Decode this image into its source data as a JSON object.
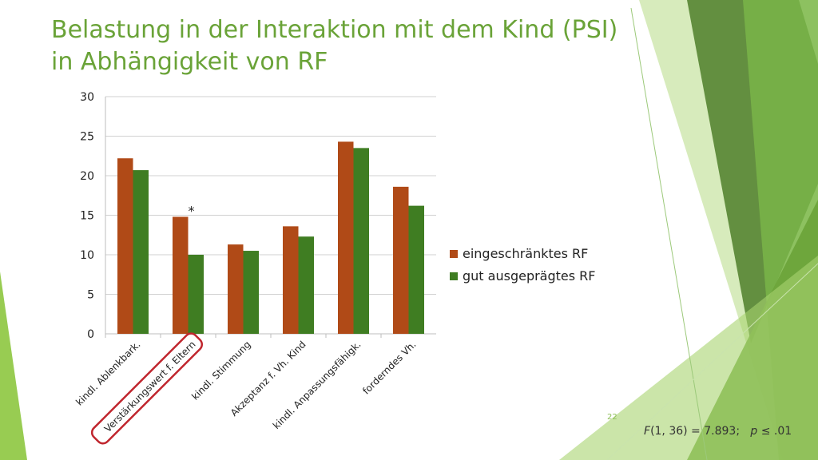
{
  "slide": {
    "title_line1": "Belastung in der Interaktion mit dem Kind (PSI)",
    "title_line2": "in Abhängigkeit von RF",
    "page_number": "22",
    "stat": {
      "f_symbol": "F",
      "f_text": "(1, 36) = 7.893;",
      "p_symbol": "p",
      "p_text": " ≤ .01"
    },
    "colors": {
      "title": "#6aa338",
      "accent_green": "#8dc63f",
      "dark_green": "#4f7f2a",
      "highlight_box": "#c0262e"
    }
  },
  "chart_data": {
    "type": "bar",
    "categories": [
      "kindl. Ablenkbark.",
      "Verstärkungswert f. Eltern",
      "kindl. Stimmung",
      "Akzeptanz f. Vh. Kind",
      "kindl. Anpassungsfähigk.",
      "forderndes Vh."
    ],
    "series": [
      {
        "name": "eingeschränktes RF",
        "color": "#b04a17",
        "values": [
          22.2,
          14.8,
          11.3,
          13.6,
          24.3,
          18.6
        ]
      },
      {
        "name": "gut ausgeprägtes RF",
        "color": "#3f7d22",
        "values": [
          20.7,
          10.0,
          10.5,
          12.3,
          23.5,
          16.2
        ]
      }
    ],
    "ylim": [
      0,
      30
    ],
    "yticks": [
      0,
      5,
      10,
      15,
      20,
      25,
      30
    ],
    "grid": true,
    "legend": "right",
    "annotations": [
      {
        "category_index": 1,
        "text": "*"
      }
    ],
    "highlighted_category_index": 1
  }
}
